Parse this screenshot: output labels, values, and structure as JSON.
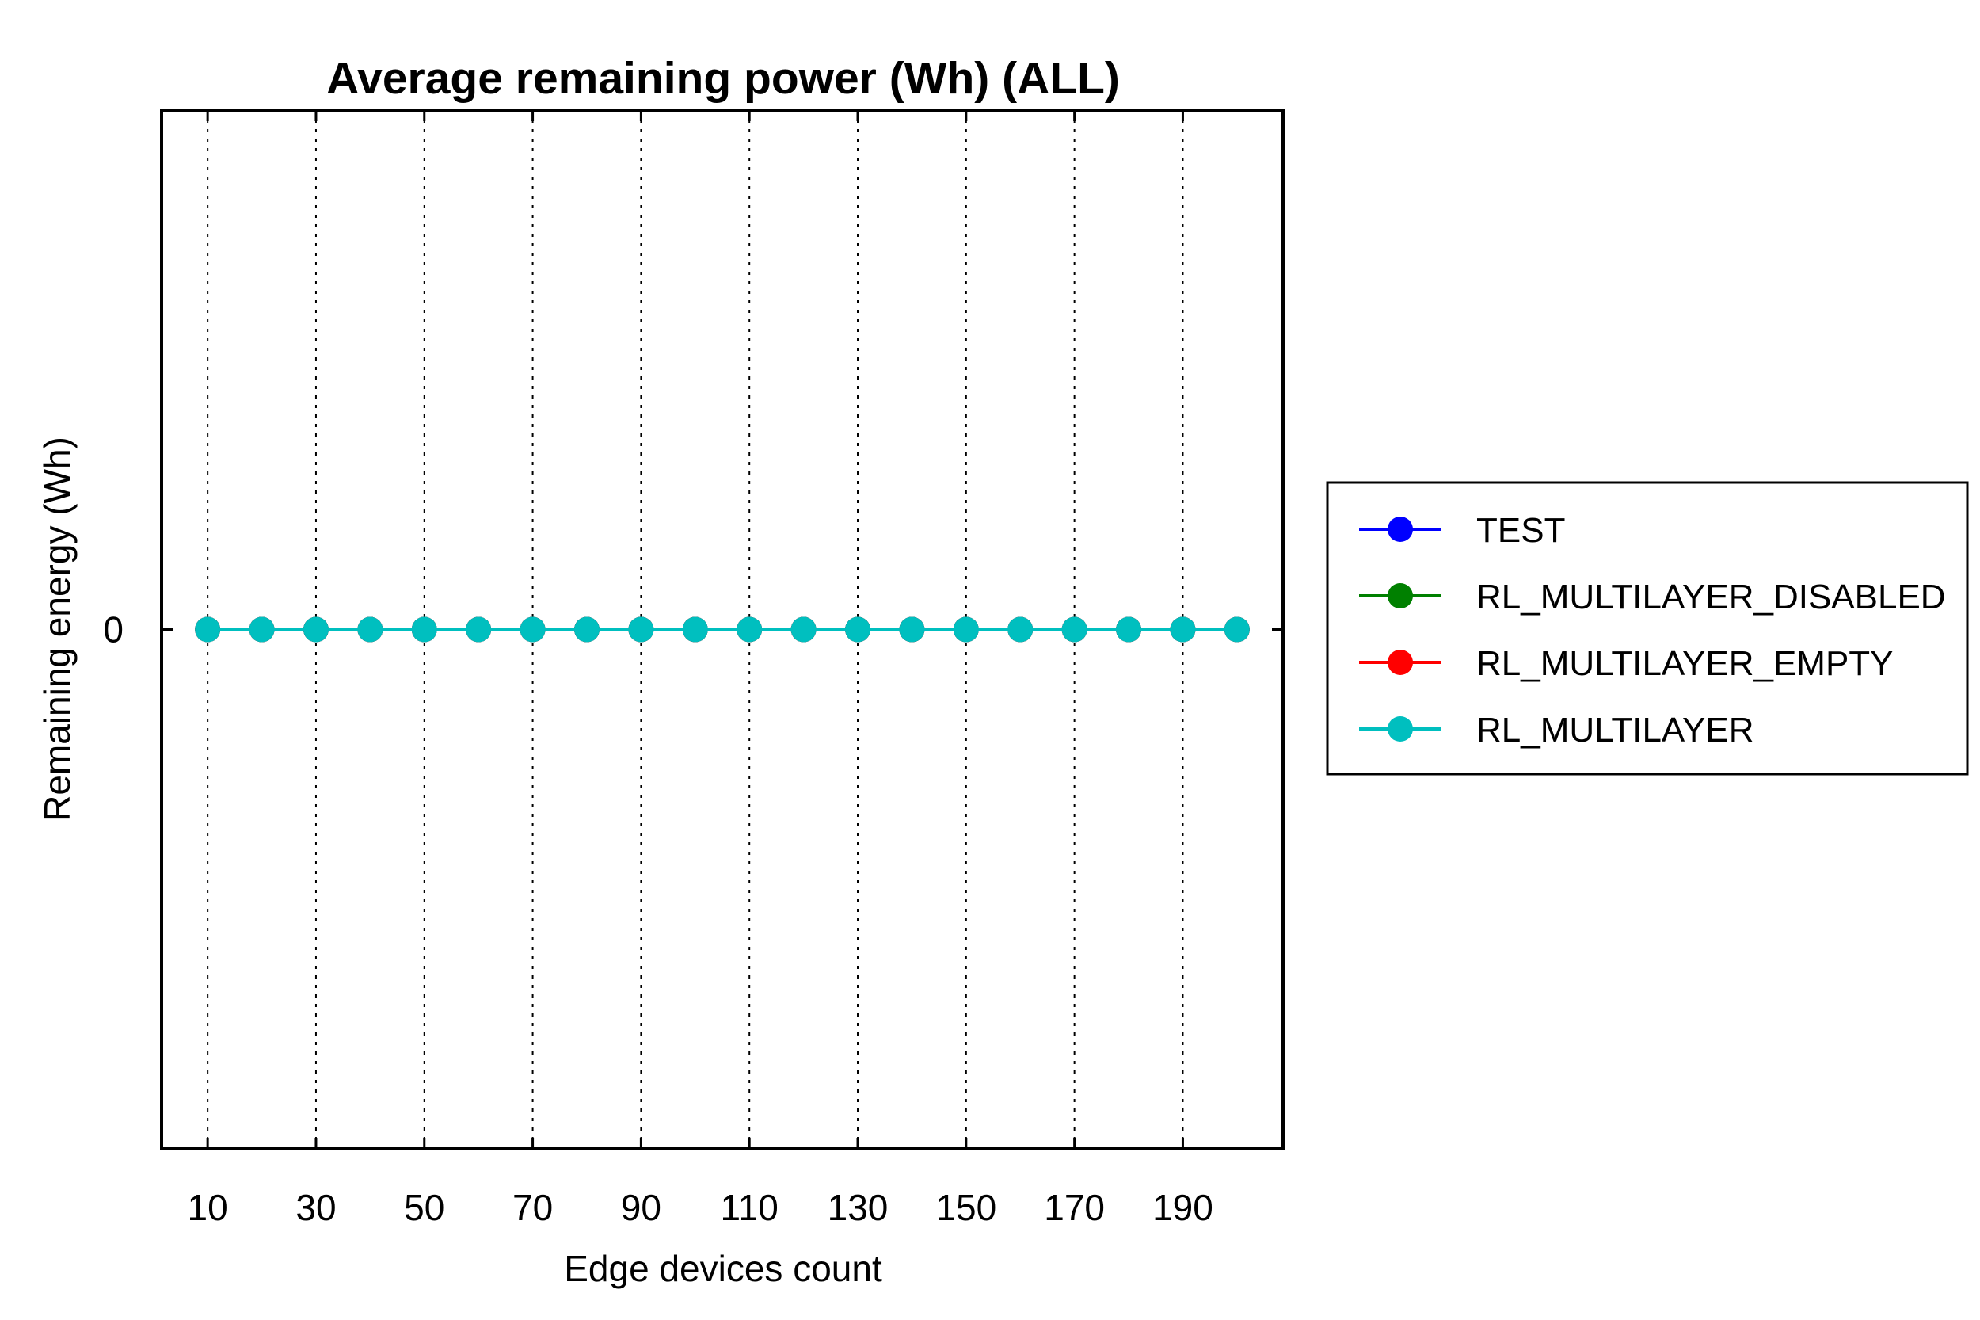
{
  "chart_data": {
    "type": "line",
    "title": "Average remaining power (Wh) (ALL)",
    "xlabel": "Edge devices count",
    "ylabel": "Remaining energy (Wh)",
    "x": [
      10,
      20,
      30,
      40,
      50,
      60,
      70,
      80,
      90,
      100,
      110,
      120,
      130,
      140,
      150,
      160,
      170,
      180,
      190,
      200
    ],
    "x_ticks": [
      10,
      30,
      50,
      70,
      90,
      110,
      130,
      150,
      170,
      190
    ],
    "x_tick_labels": [
      "10",
      "30",
      "50",
      "70",
      "90",
      "110",
      "130",
      "150",
      "170",
      "190"
    ],
    "y_ticks": [
      0
    ],
    "y_tick_labels": [
      "0"
    ],
    "xlim": [
      1.5,
      208.5
    ],
    "ylim": [
      -1,
      1
    ],
    "grid": "x-dotted",
    "legend_position": "outside-right",
    "series": [
      {
        "name": "TEST",
        "color": "#0000ff",
        "values": [
          0,
          0,
          0,
          0,
          0,
          0,
          0,
          0,
          0,
          0,
          0,
          0,
          0,
          0,
          0,
          0,
          0,
          0,
          0,
          0
        ]
      },
      {
        "name": "RL_MULTILAYER_DISABLED",
        "color": "#008000",
        "values": [
          0,
          0,
          0,
          0,
          0,
          0,
          0,
          0,
          0,
          0,
          0,
          0,
          0,
          0,
          0,
          0,
          0,
          0,
          0,
          0
        ]
      },
      {
        "name": "RL_MULTILAYER_EMPTY",
        "color": "#ff0000",
        "values": [
          0,
          0,
          0,
          0,
          0,
          0,
          0,
          0,
          0,
          0,
          0,
          0,
          0,
          0,
          0,
          0,
          0,
          0,
          0,
          0
        ]
      },
      {
        "name": "RL_MULTILAYER",
        "color": "#00bfbf",
        "values": [
          0,
          0,
          0,
          0,
          0,
          0,
          0,
          0,
          0,
          0,
          0,
          0,
          0,
          0,
          0,
          0,
          0,
          0,
          0,
          0
        ]
      }
    ]
  }
}
